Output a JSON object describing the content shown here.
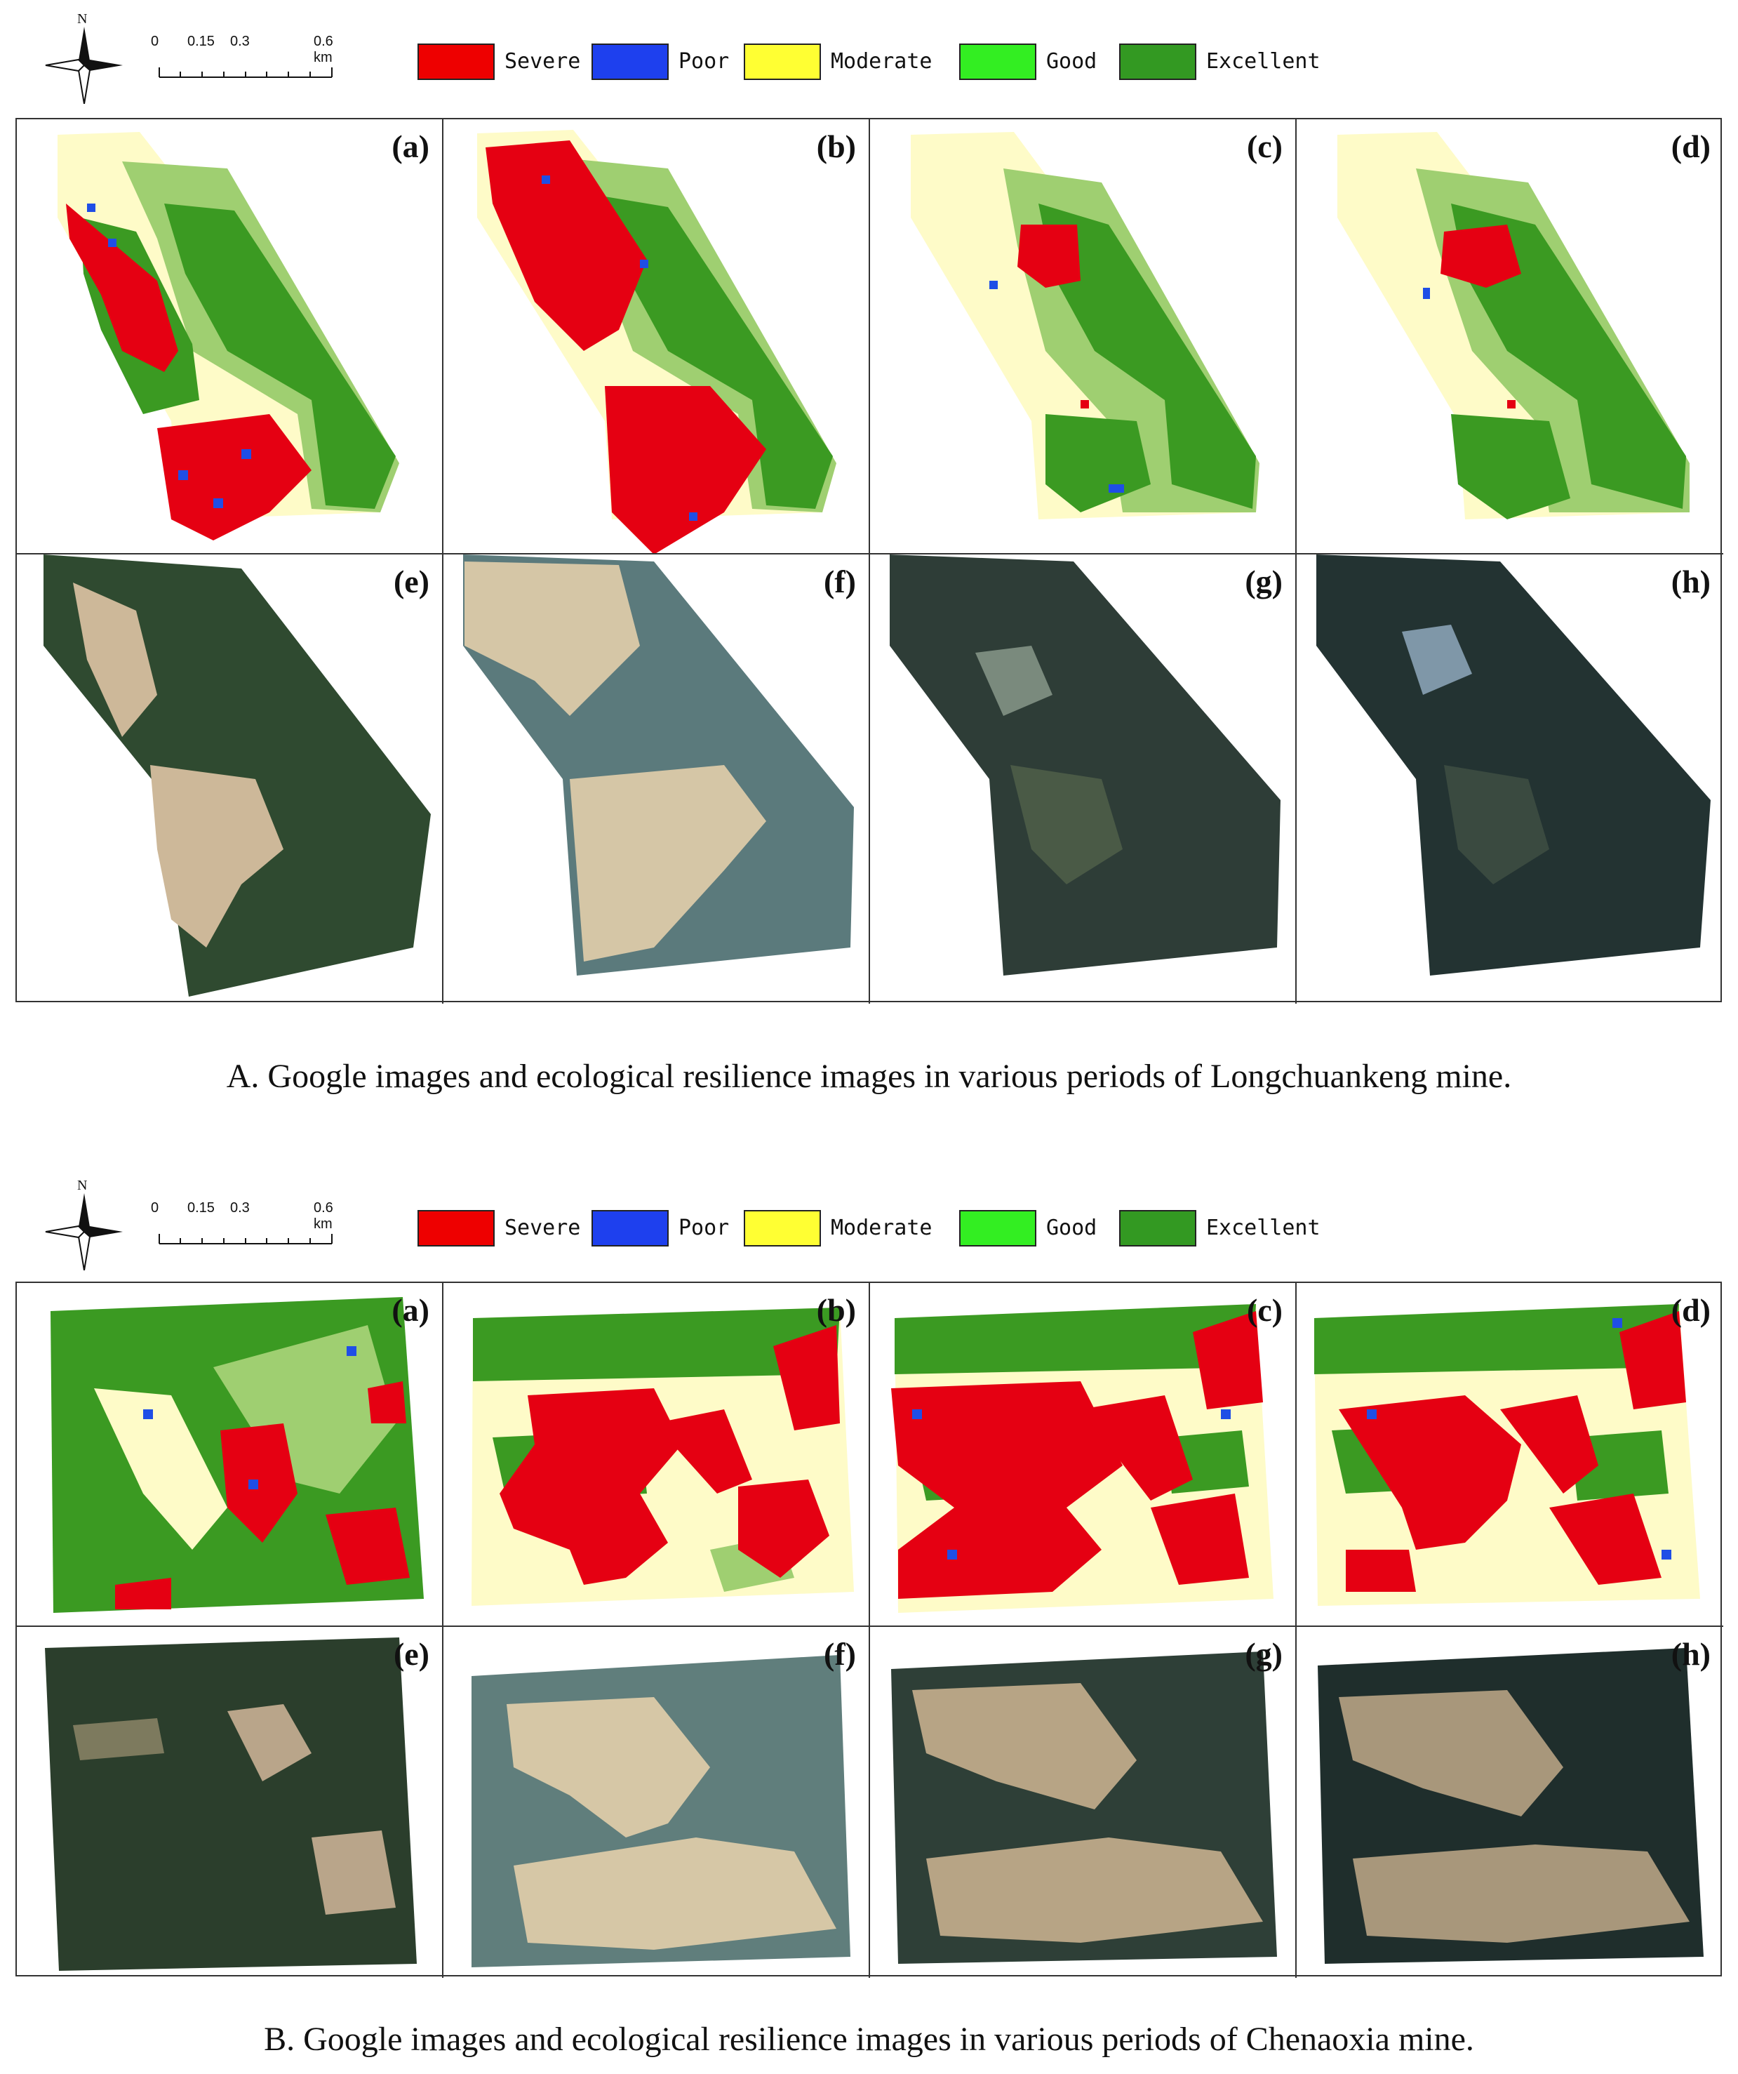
{
  "legend": {
    "north_letter": "N",
    "scale": {
      "t0": "0",
      "t1": "0.15",
      "t2": "0.3",
      "t3": "0.6 km"
    },
    "classes": [
      {
        "label": "Severe",
        "color": "#ee0000"
      },
      {
        "label": "Poor",
        "color": "#1e40ee"
      },
      {
        "label": "Moderate",
        "color": "#ffff33"
      },
      {
        "label": "Good",
        "color": "#33ee22"
      },
      {
        "label": "Excellent",
        "color": "#339922"
      }
    ]
  },
  "map_colors": {
    "severe": "#e50012",
    "poor": "#1f4ee6",
    "moderate": "#fefbc8",
    "good": "#9fcf71",
    "excellent": "#3b9a22",
    "image_forest_dark": "#2b3e2c",
    "image_bare": "#cdb899"
  },
  "section_a": {
    "caption": "A. Google images and ecological resilience images in various periods of Longchuankeng mine.",
    "panel_labels": [
      "(a)",
      "(b)",
      "(c)",
      "(d)",
      "(e)",
      "(f)",
      "(g)",
      "(h)"
    ]
  },
  "section_b": {
    "caption": "B. Google images and ecological resilience images in various periods of Chenaoxia mine.",
    "panel_labels": [
      "(a)",
      "(b)",
      "(c)",
      "(d)",
      "(e)",
      "(f)",
      "(g)",
      "(h)"
    ]
  }
}
